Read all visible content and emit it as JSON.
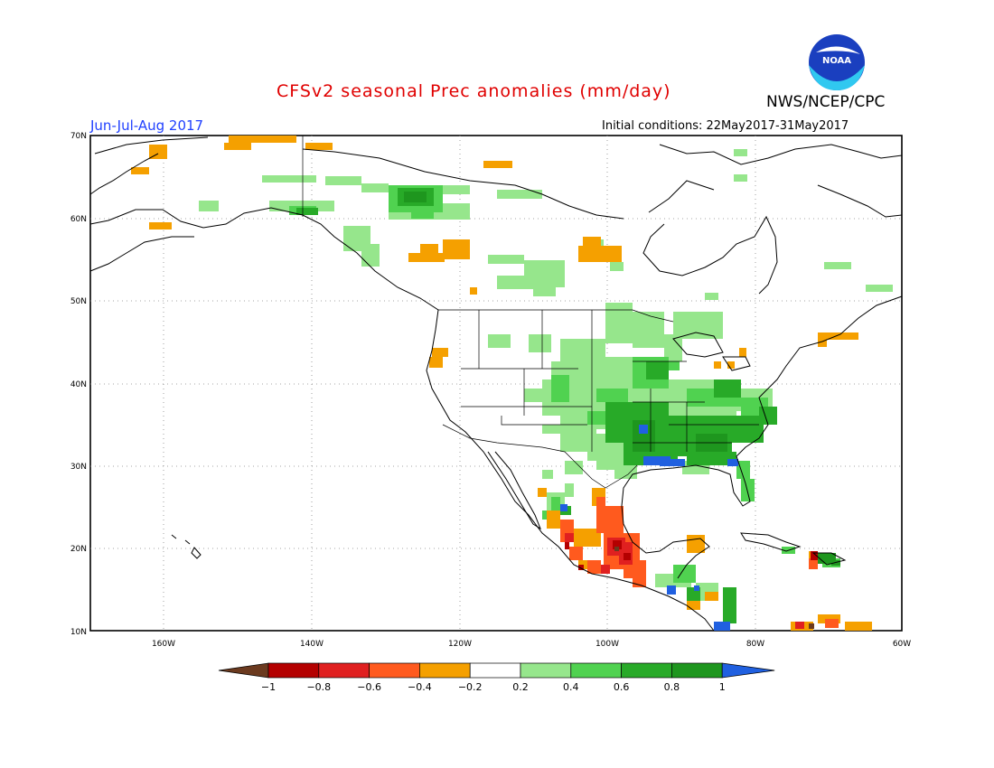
{
  "header": {
    "title": "CFSv2 seasonal Prec anomalies (mm/day)",
    "org": "NWS/NCEP/CPC",
    "period": "Jun-Jul-Aug 2017",
    "initial_conditions": "Initial conditions: 22May2017-31May2017"
  },
  "logo": {
    "text": "NOAA"
  },
  "axes": {
    "lon_labels": [
      "160W",
      "140W",
      "120W",
      "100W",
      "80W",
      "60W"
    ],
    "lat_labels": [
      "70N",
      "60N",
      "50N",
      "40N",
      "30N",
      "20N",
      "10N"
    ]
  },
  "colorbar": {
    "tick_labels": [
      "−1",
      "−0.8",
      "−0.6",
      "−0.4",
      "−0.2",
      "0.2",
      "0.4",
      "0.6",
      "0.8",
      "1"
    ],
    "colors": [
      "#6b3a1f",
      "#b40000",
      "#e02020",
      "#ff5a1e",
      "#f5a000",
      "#ffffff",
      "#96e68c",
      "#50d250",
      "#28aa28",
      "#1e961e",
      "#2060e0"
    ]
  },
  "map_colors": {
    "dark_brown": "#6b3a1f",
    "dark_red": "#b40000",
    "red": "#e02020",
    "orange_red": "#ff5a1e",
    "orange": "#f5a000",
    "light_green": "#96e68c",
    "green": "#50d250",
    "mid_green": "#28aa28",
    "dark_green": "#1e961e",
    "blue": "#2060e0"
  }
}
